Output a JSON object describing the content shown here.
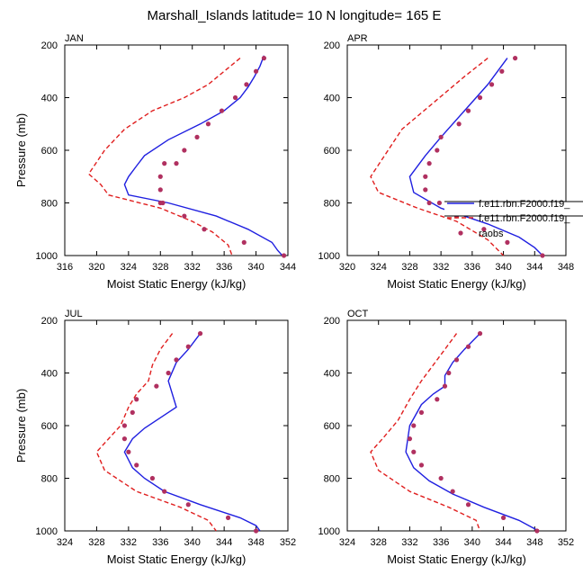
{
  "figure": {
    "title": "Marshall_Islands  latitude= 10 N longitude= 165 E"
  },
  "legend": {
    "entries": [
      {
        "label": "f.e11.rbn.F2000.f19_",
        "style": "solid",
        "color": "#1f1fe0"
      },
      {
        "label": "f.e11.rbn.F2000.f19_",
        "style": "dashed",
        "color": "#e01f1f"
      },
      {
        "label": "raobs",
        "style": "dots",
        "color": "#b03060"
      }
    ]
  },
  "chart_data": [
    {
      "type": "line",
      "panel_label": "JAN",
      "title": "JAN",
      "xlabel": "Moist Static Energy (kJ/kg)",
      "ylabel": "Pressure (mb)",
      "xlim": [
        316,
        344
      ],
      "ylim": [
        1000,
        200
      ],
      "xticks": [
        316,
        320,
        324,
        328,
        332,
        336,
        340,
        344
      ],
      "yticks": [
        200,
        400,
        600,
        800,
        1000
      ],
      "series": [
        {
          "name": "f.e11.rbn.F2000.f19_ (solid)",
          "style": "solid",
          "color": "#1f1fe0",
          "x": [
            341.0,
            340.5,
            339.8,
            339.0,
            338.0,
            336.0,
            333.0,
            329.0,
            326.0,
            325.0,
            324.0,
            323.5,
            324.0,
            329.0,
            335.0,
            339.0,
            342.0,
            342.7,
            343.3
          ],
          "y": [
            240,
            280,
            320,
            360,
            400,
            450,
            500,
            560,
            620,
            660,
            700,
            730,
            770,
            800,
            850,
            900,
            950,
            980,
            1000
          ]
        },
        {
          "name": "f.e11.rbn.F2000.f19_ (dashed)",
          "style": "dashed",
          "color": "#e01f1f",
          "x": [
            338.0,
            336.0,
            334.0,
            331.0,
            327.0,
            323.5,
            321.0,
            319.0,
            320.5,
            321.5,
            328.0,
            332.0,
            334.5,
            336.5,
            337.0
          ],
          "y": [
            250,
            300,
            350,
            400,
            450,
            520,
            600,
            690,
            730,
            770,
            820,
            870,
            910,
            960,
            1000
          ]
        },
        {
          "name": "raobs",
          "style": "dots",
          "color": "#b03060",
          "x": [
            341.0,
            340.0,
            338.8,
            337.4,
            335.7,
            334.0,
            332.6,
            331.0,
            330.0,
            328.5,
            328.0,
            328.0,
            328.0,
            328.3,
            331.0,
            333.5,
            338.5,
            343.5
          ],
          "y": [
            250,
            300,
            350,
            400,
            450,
            500,
            550,
            600,
            650,
            650,
            700,
            750,
            800,
            800,
            850,
            900,
            950,
            1000
          ]
        }
      ]
    },
    {
      "type": "line",
      "panel_label": "APR",
      "title": "APR",
      "xlabel": "Moist Static Energy (kJ/kg)",
      "ylabel": "",
      "xlim": [
        320,
        348
      ],
      "ylim": [
        1000,
        200
      ],
      "xticks": [
        320,
        324,
        328,
        332,
        336,
        340,
        344,
        348
      ],
      "yticks": [
        200,
        400,
        600,
        800,
        1000
      ],
      "series": [
        {
          "name": "f.e11.rbn.F2000.f19_ (solid)",
          "style": "solid",
          "color": "#1f1fe0",
          "x": [
            340.5,
            338.0,
            335.0,
            332.0,
            330.0,
            328.0,
            328.5,
            332.0,
            338.0,
            342.0,
            344.0,
            345.0
          ],
          "y": [
            250,
            350,
            450,
            550,
            620,
            700,
            760,
            820,
            880,
            930,
            970,
            1000
          ]
        },
        {
          "name": "f.e11.rbn.F2000.f19_ (dashed)",
          "style": "dashed",
          "color": "#e01f1f",
          "x": [
            338.0,
            335.0,
            331.0,
            327.0,
            323.0,
            324.0,
            329.0,
            334.0,
            338.0,
            340.0
          ],
          "y": [
            250,
            320,
            420,
            520,
            700,
            760,
            820,
            870,
            940,
            1000
          ]
        },
        {
          "name": "raobs",
          "style": "dots",
          "color": "#b03060",
          "x": [
            341.5,
            339.8,
            338.5,
            337.0,
            335.5,
            334.3,
            332.0,
            331.5,
            330.5,
            330.0,
            330.0,
            330.5,
            331.8,
            334.0,
            337.5,
            340.5,
            345.0
          ],
          "y": [
            250,
            300,
            350,
            400,
            450,
            500,
            550,
            600,
            650,
            700,
            750,
            800,
            800,
            850,
            900,
            950,
            1000
          ]
        }
      ]
    },
    {
      "type": "line",
      "panel_label": "JUL",
      "title": "JUL",
      "xlabel": "Moist Static Energy (kJ/kg)",
      "ylabel": "Pressure (mb)",
      "xlim": [
        324,
        352
      ],
      "ylim": [
        1000,
        200
      ],
      "xticks": [
        324,
        328,
        332,
        336,
        340,
        344,
        348,
        352
      ],
      "yticks": [
        200,
        400,
        600,
        800,
        1000
      ],
      "series": [
        {
          "name": "f.e11.rbn.F2000.f19_ (solid)",
          "style": "solid",
          "color": "#1f1fe0",
          "x": [
            341.0,
            339.5,
            338.0,
            337.0,
            338.0,
            336.0,
            334.0,
            332.5,
            331.5,
            332.5,
            334.0,
            336.5,
            341.0,
            346.0,
            348.0,
            348.5
          ],
          "y": [
            250,
            310,
            360,
            430,
            530,
            570,
            610,
            650,
            700,
            760,
            800,
            850,
            900,
            950,
            980,
            1000
          ]
        },
        {
          "name": "f.e11.rbn.F2000.f19_ (dashed)",
          "style": "dashed",
          "color": "#e01f1f",
          "x": [
            337.5,
            336.0,
            335.0,
            334.5,
            333.0,
            332.0,
            331.0,
            329.5,
            328.0,
            329.0,
            333.0,
            338.5,
            342.0,
            343.0
          ],
          "y": [
            250,
            310,
            370,
            430,
            480,
            530,
            600,
            650,
            700,
            770,
            850,
            910,
            960,
            1000
          ]
        },
        {
          "name": "raobs",
          "style": "dots",
          "color": "#b03060",
          "x": [
            341.0,
            339.5,
            338.0,
            337.0,
            335.5,
            333.0,
            332.5,
            331.5,
            331.5,
            332.0,
            333.0,
            335.0,
            336.5,
            339.5,
            344.5,
            348.0
          ],
          "y": [
            250,
            300,
            350,
            400,
            450,
            500,
            550,
            600,
            650,
            700,
            750,
            800,
            850,
            900,
            950,
            1000
          ]
        }
      ]
    },
    {
      "type": "line",
      "panel_label": "OCT",
      "title": "OCT",
      "xlabel": "Moist Static Energy (kJ/kg)",
      "ylabel": "",
      "xlim": [
        324,
        352
      ],
      "ylim": [
        1000,
        200
      ],
      "xticks": [
        324,
        328,
        332,
        336,
        340,
        344,
        348,
        352
      ],
      "yticks": [
        200,
        400,
        600,
        800,
        1000
      ],
      "series": [
        {
          "name": "f.e11.rbn.F2000.f19_ (solid)",
          "style": "solid",
          "color": "#1f1fe0",
          "x": [
            341.0,
            339.0,
            337.5,
            336.5,
            336.5,
            335.0,
            333.5,
            332.0,
            331.5,
            332.5,
            334.5,
            337.5,
            341.5,
            346.0,
            348.5
          ],
          "y": [
            250,
            310,
            360,
            410,
            450,
            480,
            520,
            600,
            700,
            760,
            810,
            860,
            910,
            960,
            1000
          ]
        },
        {
          "name": "f.e11.rbn.F2000.f19_ (dashed)",
          "style": "dashed",
          "color": "#e01f1f",
          "x": [
            338.0,
            336.5,
            335.0,
            333.5,
            332.0,
            330.5,
            328.5,
            327.0,
            328.0,
            332.0,
            337.0,
            340.5,
            341.0
          ],
          "y": [
            250,
            310,
            370,
            430,
            500,
            580,
            650,
            700,
            770,
            850,
            910,
            960,
            1000
          ]
        },
        {
          "name": "raobs",
          "style": "dots",
          "color": "#b03060",
          "x": [
            341.0,
            339.5,
            338.0,
            337.0,
            336.5,
            335.5,
            333.5,
            332.5,
            332.0,
            332.5,
            333.5,
            336.0,
            337.5,
            339.5,
            344.0,
            348.3
          ],
          "y": [
            250,
            300,
            350,
            400,
            450,
            500,
            550,
            600,
            650,
            700,
            750,
            800,
            850,
            900,
            950,
            1000
          ]
        }
      ]
    }
  ]
}
